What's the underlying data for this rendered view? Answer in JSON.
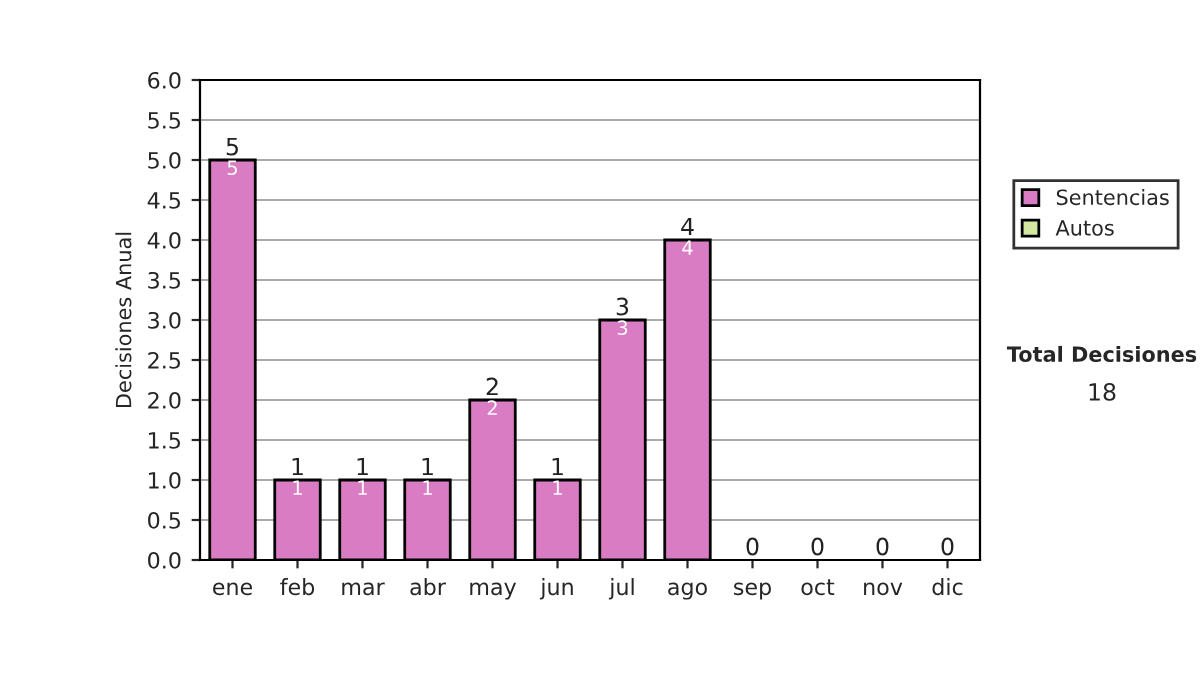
{
  "chart_data": {
    "type": "bar",
    "ylabel": "Decisiones Anual",
    "categories": [
      "ene",
      "feb",
      "mar",
      "abr",
      "may",
      "jun",
      "jul",
      "ago",
      "sep",
      "oct",
      "nov",
      "dic"
    ],
    "series": [
      {
        "name": "Sentencias",
        "color": "#d97cc4",
        "values": [
          5,
          1,
          1,
          1,
          2,
          1,
          3,
          4,
          0,
          0,
          0,
          0
        ],
        "value_labels": [
          "5",
          "1",
          "1",
          "1",
          "2",
          "1",
          "3",
          "4",
          null,
          null,
          null,
          null
        ]
      },
      {
        "name": "Autos",
        "color": "#d4e8a0",
        "values": [
          0,
          0,
          0,
          0,
          0,
          0,
          0,
          0,
          0,
          0,
          0,
          0
        ]
      }
    ],
    "stacked": true,
    "totals": [
      "5",
      "1",
      "1",
      "1",
      "2",
      "1",
      "3",
      "4",
      "0",
      "0",
      "0",
      "0"
    ],
    "ylim": [
      0,
      6
    ],
    "yticks": [
      {
        "value": 0,
        "label": "0.0"
      },
      {
        "value": 0.5,
        "label": "0.5"
      },
      {
        "value": 1,
        "label": "1.0"
      },
      {
        "value": 1.5,
        "label": "1.5"
      },
      {
        "value": 2,
        "label": "2.0"
      },
      {
        "value": 2.5,
        "label": "2.5"
      },
      {
        "value": 3,
        "label": "3.0"
      },
      {
        "value": 3.5,
        "label": "3.5"
      },
      {
        "value": 4,
        "label": "4.0"
      },
      {
        "value": 4.5,
        "label": "4.5"
      },
      {
        "value": 5,
        "label": "5.0"
      },
      {
        "value": 5.5,
        "label": "5.5"
      },
      {
        "value": 6,
        "label": "6.0"
      }
    ],
    "grid": "y",
    "legend": "right",
    "annotations": [
      "Total Decisiones",
      "18"
    ]
  }
}
